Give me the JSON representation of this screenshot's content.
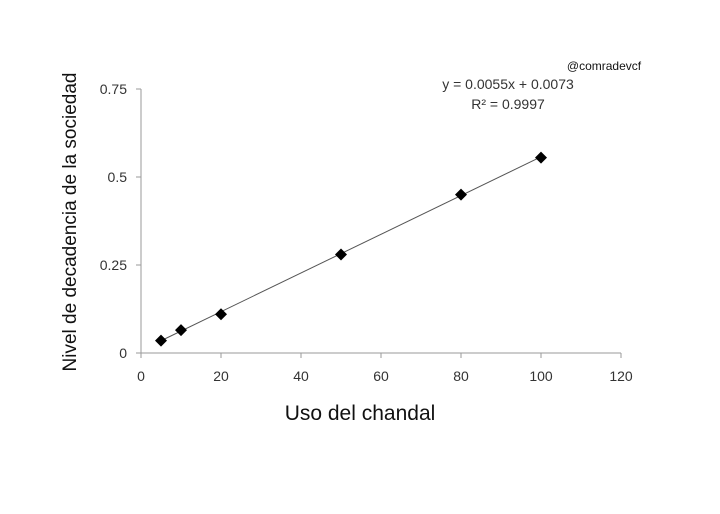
{
  "watermark": "@comradevcf",
  "chart_data": {
    "type": "scatter",
    "title": "",
    "xlabel": "Uso del chandal",
    "ylabel": "Nivel de decadencia de la sociedad",
    "xlim": [
      0,
      120
    ],
    "ylim": [
      0,
      0.75
    ],
    "x_ticks": [
      0,
      20,
      40,
      60,
      80,
      100,
      120
    ],
    "y_ticks": [
      0,
      0.25,
      0.5,
      0.75
    ],
    "x_tick_labels": [
      "0",
      "20",
      "40",
      "60",
      "80",
      "100",
      "120"
    ],
    "y_tick_labels": [
      "0",
      "0.25",
      "0.5",
      "0.75"
    ],
    "grid": false,
    "legend": "none",
    "marker": "diamond",
    "marker_color": "#000000",
    "series": [
      {
        "x": [
          5,
          10,
          20,
          50,
          80,
          100
        ],
        "y": [
          0.035,
          0.065,
          0.11,
          0.28,
          0.45,
          0.555
        ]
      }
    ],
    "trendline": {
      "type": "linear",
      "slope": 0.0055,
      "intercept": 0.0073,
      "x_range": [
        5,
        100
      ],
      "color": "#555555"
    },
    "annotations": {
      "equation": "y = 0.0055x + 0.0073",
      "r_squared": "R² = 0.9997"
    }
  }
}
